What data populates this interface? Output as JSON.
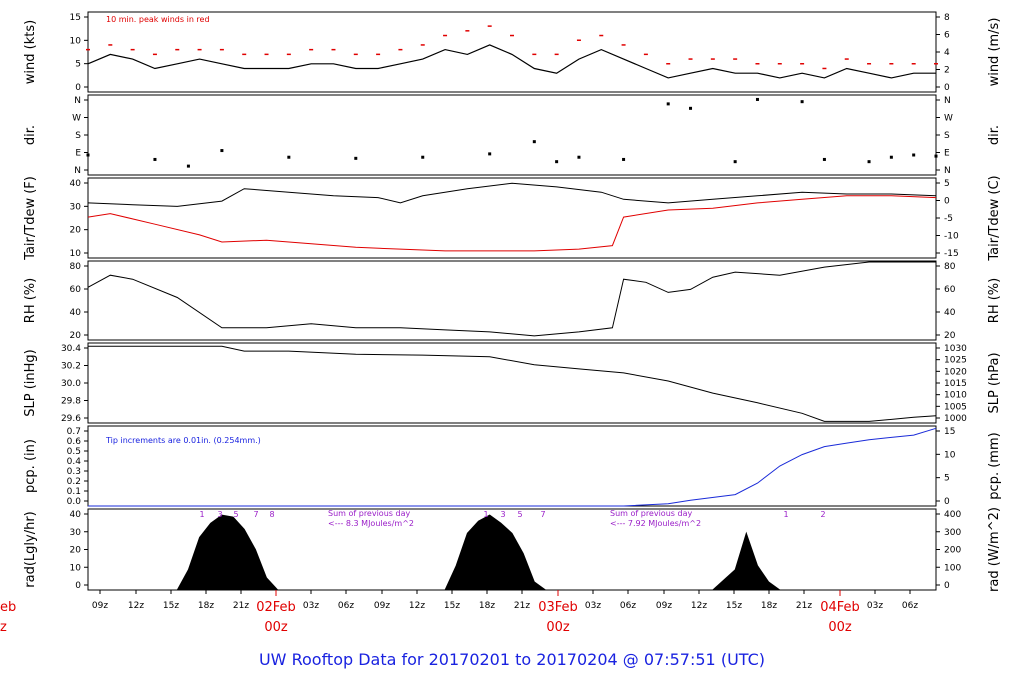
{
  "title": "UW Rooftop Data for 20170201  to  20170204 @ 07:57:51  (UTC)",
  "colors": {
    "text_blue": "#1a23e0",
    "red": "#e00000",
    "blue_line": "#1a2bd8",
    "purple": "#9a1ec8"
  },
  "x_axis": {
    "ticks": [
      "09z",
      "12z",
      "15z",
      "18z",
      "21z",
      "03z",
      "06z",
      "09z",
      "12z",
      "15z",
      "18z",
      "21z",
      "03z",
      "06z",
      "09z",
      "12z",
      "15z",
      "18z",
      "21z",
      "03z",
      "06z"
    ],
    "day_labels": [
      {
        "date": "02Feb",
        "hour": "00z"
      },
      {
        "date": "03Feb",
        "hour": "00z"
      },
      {
        "date": "04Feb",
        "hour": "00z"
      }
    ],
    "cut_left": {
      "date": "eb",
      "hour": "z"
    }
  },
  "panels": {
    "wind": {
      "ylabel": "wind (kts)",
      "ylabel_right": "wind (m/s)",
      "note": "10 min. peak winds in red",
      "left_ticks": [
        "15",
        "10",
        "5",
        "0"
      ],
      "right_ticks": [
        "8",
        "6",
        "4",
        "2",
        "0"
      ]
    },
    "dir": {
      "ylabel": "dir.",
      "ylabel_right": "dir.",
      "ticks": [
        "N",
        "W",
        "S",
        "E",
        "N"
      ]
    },
    "temp": {
      "ylabel": "Tair/Tdew (F)",
      "ylabel_right": "Tair/Tdew (C)",
      "left_ticks": [
        "40",
        "30",
        "20",
        "10"
      ],
      "right_ticks": [
        "5",
        "0",
        "-5",
        "-10",
        "-15"
      ]
    },
    "rh": {
      "ylabel": "RH (%)",
      "ylabel_right": "RH (%)",
      "left_ticks": [
        "80",
        "60",
        "40",
        "20"
      ],
      "right_ticks": [
        "80",
        "60",
        "40",
        "20"
      ]
    },
    "slp": {
      "ylabel": "SLP (inHg)",
      "ylabel_right": "SLP (hPa)",
      "left_ticks": [
        "30.4",
        "30.2",
        "30.0",
        "29.8",
        "29.6"
      ],
      "right_ticks": [
        "1030",
        "1025",
        "1020",
        "1015",
        "1010",
        "1005",
        "1000"
      ]
    },
    "pcp": {
      "ylabel": "pcp. (in)",
      "ylabel_right": "pcp. (mm)",
      "note": "Tip increments are 0.01in. (0.254mm.)",
      "left_ticks": [
        "0.7",
        "0.6",
        "0.5",
        "0.4",
        "0.3",
        "0.2",
        "0.1",
        "0.0"
      ],
      "right_ticks": [
        "15",
        "10",
        "5",
        "0"
      ]
    },
    "rad": {
      "ylabel": "rad(Lgly/hr)",
      "ylabel_right": "rad (W/m^2)",
      "left_ticks": [
        "40",
        "30",
        "20",
        "10",
        "0"
      ],
      "right_ticks": [
        "400",
        "300",
        "200",
        "100",
        "0"
      ],
      "notes": [
        {
          "line1": "Sum of previous day",
          "line2": "<--- 8.3 MJoules/m^2"
        },
        {
          "line1": "Sum of previous day",
          "line2": "<--- 7.92 MJoules/m^2"
        }
      ],
      "hour_marks": [
        "1",
        "3",
        "5",
        "7",
        "8",
        "1",
        "3",
        "5",
        "7",
        "1",
        "2"
      ]
    }
  },
  "chart_data": {
    "type": "line",
    "x_unit": "hours since 2017-02-01 07:00 UTC",
    "wind_kts": {
      "x": [
        0,
        2,
        4,
        6,
        8,
        10,
        12,
        14,
        16,
        18,
        20,
        22,
        24,
        26,
        28,
        30,
        32,
        34,
        36,
        38,
        40,
        42,
        44,
        46,
        48,
        50,
        52,
        54,
        56,
        58,
        60,
        62,
        64,
        66,
        68,
        70,
        72,
        74,
        76
      ],
      "values": [
        6,
        8,
        7,
        5,
        6,
        7,
        6,
        5,
        5,
        5,
        6,
        6,
        5,
        5,
        6,
        7,
        9,
        8,
        10,
        8,
        5,
        4,
        7,
        9,
        7,
        5,
        3,
        4,
        5,
        4,
        4,
        3,
        4,
        3,
        5,
        4,
        3,
        4,
        4
      ],
      "peak_values": [
        9,
        10,
        9,
        8,
        9,
        9,
        9,
        8,
        8,
        8,
        9,
        9,
        8,
        8,
        9,
        10,
        12,
        13,
        14,
        12,
        8,
        8,
        11,
        12,
        10,
        8,
        6,
        7,
        7,
        7,
        6,
        6,
        6,
        5,
        7,
        6,
        6,
        6,
        6
      ]
    },
    "dir_deg": {
      "x": [
        0,
        6,
        9,
        12,
        18,
        24,
        30,
        36,
        40,
        42,
        44,
        48,
        52,
        54,
        58,
        60,
        64,
        66,
        70,
        72,
        74,
        76
      ],
      "values": [
        90,
        70,
        40,
        110,
        80,
        75,
        80,
        95,
        150,
        60,
        80,
        70,
        320,
        300,
        60,
        340,
        330,
        70,
        60,
        80,
        90,
        85
      ]
    },
    "tair_F": {
      "x": [
        0,
        4,
        8,
        12,
        14,
        18,
        22,
        26,
        28,
        30,
        34,
        38,
        42,
        46,
        48,
        52,
        56,
        60,
        64,
        68,
        72,
        76
      ],
      "values": [
        34,
        33,
        32,
        35,
        42,
        40,
        38,
        37,
        34,
        38,
        42,
        45,
        43,
        40,
        36,
        34,
        36,
        38,
        40,
        39,
        39,
        38
      ]
    },
    "tdew_F": {
      "x": [
        0,
        2,
        6,
        10,
        12,
        16,
        20,
        24,
        28,
        32,
        36,
        40,
        44,
        47,
        48,
        52,
        56,
        60,
        64,
        68,
        72,
        76
      ],
      "values": [
        26,
        28,
        22,
        16,
        12,
        13,
        11,
        9,
        8,
        7,
        7,
        7,
        8,
        10,
        26,
        30,
        31,
        34,
        36,
        38,
        38,
        37
      ]
    },
    "rh_pct": {
      "x": [
        0,
        2,
        4,
        8,
        12,
        16,
        20,
        24,
        28,
        32,
        36,
        40,
        44,
        47,
        48,
        50,
        52,
        54,
        56,
        58,
        62,
        66,
        70,
        76
      ],
      "values": [
        70,
        82,
        78,
        60,
        30,
        30,
        34,
        30,
        30,
        28,
        26,
        22,
        26,
        30,
        78,
        75,
        65,
        68,
        80,
        85,
        82,
        90,
        95,
        95
      ]
    },
    "slp_inHg": {
      "x": [
        0,
        6,
        12,
        14,
        18,
        24,
        30,
        36,
        40,
        44,
        48,
        52,
        56,
        60,
        64,
        66,
        70,
        74,
        76
      ],
      "values": [
        30.38,
        30.38,
        30.38,
        30.32,
        30.32,
        30.28,
        30.27,
        30.25,
        30.15,
        30.1,
        30.05,
        29.95,
        29.8,
        29.68,
        29.55,
        29.45,
        29.45,
        29.5,
        29.52
      ]
    },
    "pcp_in": {
      "x": [
        0,
        48,
        52,
        54,
        58,
        60,
        62,
        64,
        66,
        68,
        70,
        72,
        74,
        76
      ],
      "values": [
        0,
        0,
        0.02,
        0.05,
        0.1,
        0.2,
        0.35,
        0.45,
        0.52,
        0.55,
        0.58,
        0.6,
        0.62,
        0.68
      ]
    },
    "rad_lgly_hr": {
      "x": [
        8,
        9,
        10,
        11,
        12,
        13,
        14,
        15,
        16,
        17,
        32,
        33,
        34,
        35,
        36,
        37,
        38,
        39,
        40,
        41,
        56,
        57,
        58,
        59,
        60,
        61,
        62
      ],
      "values": [
        0,
        10,
        26,
        33,
        37,
        36,
        30,
        20,
        6,
        0,
        0,
        12,
        28,
        34,
        37,
        33,
        28,
        18,
        4,
        0,
        0,
        5,
        10,
        28,
        12,
        4,
        0
      ]
    },
    "xlim": [
      0,
      76
    ]
  }
}
